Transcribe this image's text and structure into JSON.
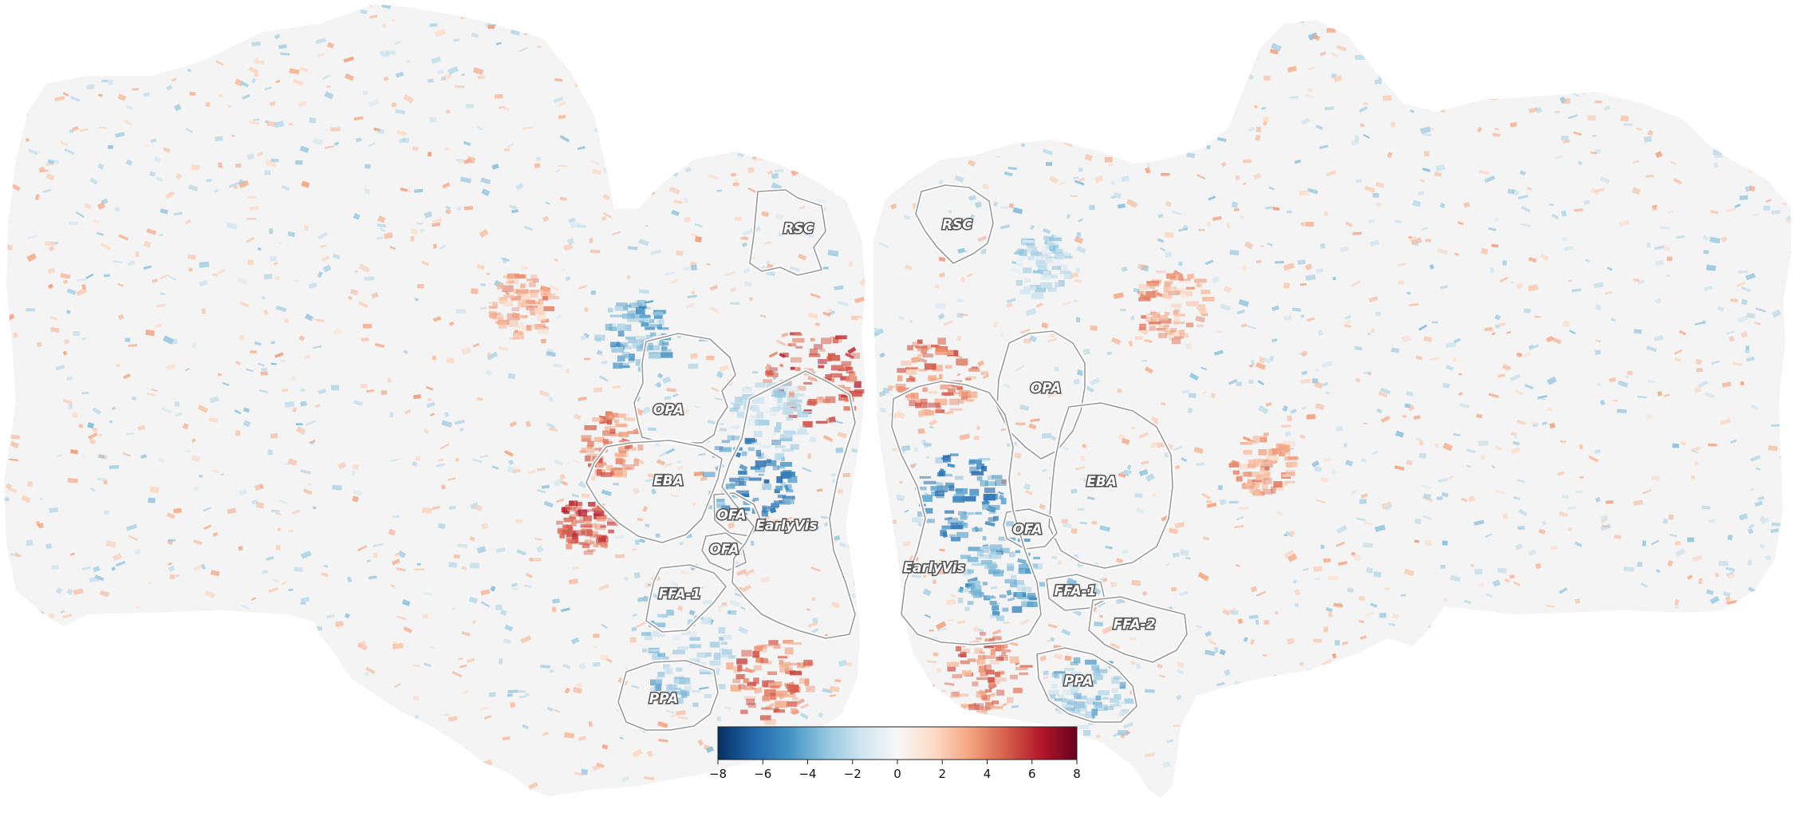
{
  "figure": {
    "hemispheres": [
      {
        "side": "left",
        "rois": [
          {
            "id": "RSC",
            "label": "RSC"
          },
          {
            "id": "OPA",
            "label": "OPA"
          },
          {
            "id": "EBA",
            "label": "EBA"
          },
          {
            "id": "OFA_a",
            "label": "OFA"
          },
          {
            "id": "OFA_b",
            "label": "OFA"
          },
          {
            "id": "EarlyVis",
            "label": "EarlyVis"
          },
          {
            "id": "FFA1",
            "label": "FFA-1"
          },
          {
            "id": "PPA",
            "label": "PPA"
          }
        ]
      },
      {
        "side": "right",
        "rois": [
          {
            "id": "RSC",
            "label": "RSC"
          },
          {
            "id": "OPA",
            "label": "OPA"
          },
          {
            "id": "EBA",
            "label": "EBA"
          },
          {
            "id": "OFA",
            "label": "OFA"
          },
          {
            "id": "EarlyVis",
            "label": "EarlyVis"
          },
          {
            "id": "FFA1",
            "label": "FFA-1"
          },
          {
            "id": "FFA2",
            "label": "FFA-2"
          },
          {
            "id": "PPA",
            "label": "PPA"
          }
        ]
      }
    ],
    "colorbar": {
      "min": -8,
      "max": 8,
      "ticks": [
        "−8",
        "−6",
        "−4",
        "−2",
        "0",
        "2",
        "4",
        "6",
        "8"
      ],
      "colormap_stops": [
        "#053061",
        "#2166ac",
        "#4393c3",
        "#92c5de",
        "#d1e5f0",
        "#f7f7f7",
        "#fddbc7",
        "#f4a582",
        "#d6604d",
        "#b2182b",
        "#67001f"
      ]
    },
    "colors": {
      "cortex_background": "#f4f4f4",
      "page_background": "#ffffff",
      "roi_border": "#ffffff"
    }
  }
}
